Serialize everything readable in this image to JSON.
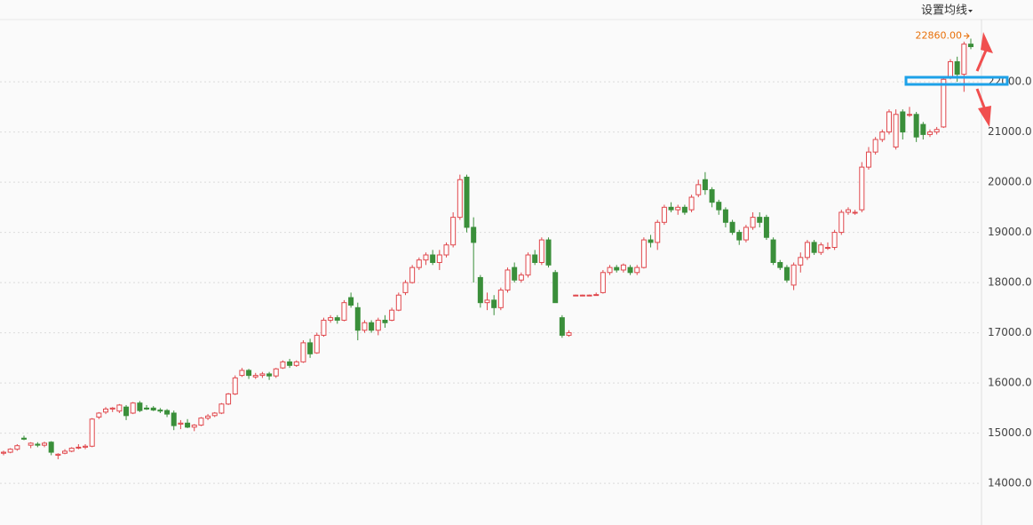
{
  "chart_data": {
    "type": "candlestick",
    "menu": "设置均线",
    "annotation": "22860.00",
    "up_color": "#e0474c",
    "down_color": "#3a8f3a",
    "annotation_color": "#e8700a",
    "grid": true,
    "ylim": [
      13170,
      23240
    ],
    "yticks": [
      {
        "value": 14000,
        "label": "14000.0"
      },
      {
        "value": 15000,
        "label": "15000.0"
      },
      {
        "value": 16000,
        "label": "16000.0"
      },
      {
        "value": 17000,
        "label": "17000.0"
      },
      {
        "value": 18000,
        "label": "18000.0"
      },
      {
        "value": 19000,
        "label": "19000.0"
      },
      {
        "value": 20000,
        "label": "20000.0"
      },
      {
        "value": 21000,
        "label": "21000.0"
      },
      {
        "value": 22000,
        "label": "22000.0"
      }
    ],
    "open": [
      14600,
      14620,
      14680,
      14900,
      14760,
      14780,
      14760,
      14820,
      14560,
      14600,
      14640,
      14720,
      14720,
      14740,
      15320,
      15420,
      15480,
      15440,
      15520,
      15400,
      15600,
      15500,
      15500,
      15460,
      15450,
      15400,
      15180,
      15200,
      15120,
      15160,
      15300,
      15350,
      15400,
      15580,
      15780,
      16150,
      16250,
      16120,
      16150,
      16180,
      16140,
      16300,
      16420,
      16350,
      16420,
      16800,
      16600,
      16950,
      17250,
      17300,
      17250,
      17700,
      17500,
      17050,
      17200,
      17050,
      17250,
      17250,
      17450,
      17800,
      18000,
      18300,
      18450,
      18550,
      18400,
      18550,
      18750,
      19300,
      20100,
      19100,
      18100,
      17600,
      17650,
      17500,
      17850,
      18300,
      18050,
      18150,
      18550,
      18400,
      18850,
      18200,
      17300,
      16950,
      17750,
      17750,
      17750,
      17750,
      17800,
      18200,
      18300,
      18250,
      18300,
      18200,
      18300,
      18850,
      18800,
      19200,
      19500,
      19450,
      19500,
      19450,
      19750,
      20050,
      19850,
      19600,
      19450,
      19200,
      19000,
      18850,
      19100,
      19300,
      19300,
      18850,
      18400,
      18300,
      17950,
      18350,
      18500,
      18800,
      18600,
      18700,
      18700,
      19000,
      19400,
      19400,
      19450,
      20300,
      20600,
      20850,
      21000,
      20700,
      21400,
      21350,
      21350,
      21150,
      20950,
      21000,
      21100,
      22100,
      22400,
      22150,
      22750
    ],
    "high": [
      14650,
      14700,
      14780,
      14950,
      14820,
      14820,
      14830,
      14840,
      14600,
      14680,
      14720,
      14780,
      14780,
      15300,
      15420,
      15520,
      15520,
      15580,
      15560,
      15620,
      15640,
      15560,
      15540,
      15500,
      15480,
      15450,
      15260,
      15280,
      15180,
      15320,
      15380,
      15420,
      15600,
      15800,
      16150,
      16300,
      16280,
      16200,
      16220,
      16220,
      16300,
      16450,
      16480,
      16450,
      16850,
      16880,
      17000,
      17300,
      17350,
      17350,
      17650,
      17800,
      17600,
      17250,
      17250,
      17300,
      17350,
      17500,
      17800,
      18050,
      18350,
      18500,
      18600,
      18650,
      18650,
      18800,
      19400,
      20150,
      20150,
      19300,
      18150,
      17800,
      17750,
      17900,
      18300,
      18400,
      18200,
      18600,
      18650,
      18900,
      18900,
      18250,
      17350,
      17050,
      17760,
      17760,
      17760,
      17800,
      18250,
      18350,
      18350,
      18380,
      18350,
      18350,
      18900,
      18950,
      19250,
      19550,
      19600,
      19550,
      19550,
      19750,
      20050,
      20200,
      19900,
      19650,
      19500,
      19250,
      19050,
      19150,
      19400,
      19400,
      19350,
      18900,
      18450,
      18350,
      18400,
      18600,
      18850,
      18850,
      18800,
      18800,
      19050,
      19450,
      19500,
      19450,
      20400,
      20700,
      20900,
      21050,
      21450,
      21450,
      21450,
      21500,
      21400,
      21200,
      21050,
      21100,
      22100,
      22450,
      22500,
      22800,
      22860
    ],
    "low": [
      14560,
      14600,
      14650,
      14860,
      14700,
      14720,
      14720,
      14560,
      14480,
      14580,
      14620,
      14680,
      14680,
      14720,
      15280,
      15380,
      15420,
      15400,
      15260,
      15380,
      15420,
      15460,
      15440,
      15400,
      15320,
      15060,
      15080,
      15100,
      15040,
      15140,
      15260,
      15320,
      15380,
      15560,
      15760,
      16120,
      16080,
      16080,
      16100,
      16060,
      16100,
      16280,
      16300,
      16320,
      16400,
      16500,
      16580,
      16920,
      17200,
      17180,
      17230,
      17500,
      16850,
      17000,
      17000,
      16950,
      17100,
      17230,
      17430,
      17750,
      17980,
      18250,
      18350,
      18350,
      18250,
      18500,
      18700,
      19250,
      19000,
      18000,
      17500,
      17450,
      17350,
      17450,
      17800,
      18000,
      18000,
      18100,
      18350,
      18350,
      18300,
      17600,
      16900,
      16920,
      17740,
      17740,
      17740,
      17740,
      17780,
      18150,
      18200,
      18200,
      18150,
      18150,
      18280,
      18700,
      18650,
      19150,
      19400,
      19350,
      19350,
      19400,
      19700,
      19750,
      19500,
      19350,
      19100,
      18950,
      18750,
      18800,
      19050,
      19100,
      18850,
      18350,
      18250,
      18000,
      17850,
      18200,
      18450,
      18550,
      18550,
      18650,
      18650,
      18950,
      19350,
      19350,
      19400,
      20250,
      20550,
      20800,
      20950,
      20650,
      20850,
      21300,
      20800,
      20850,
      20900,
      20950,
      21080,
      22050,
      22000,
      21800,
      22650
    ],
    "close": [
      14620,
      14680,
      14750,
      14880,
      14800,
      14760,
      14800,
      14620,
      14580,
      14640,
      14700,
      14720,
      14740,
      15280,
      15400,
      15480,
      15500,
      15560,
      15350,
      15600,
      15450,
      15480,
      15460,
      15440,
      15380,
      15150,
      15200,
      15120,
      15160,
      15300,
      15340,
      15400,
      15580,
      15780,
      16100,
      16250,
      16150,
      16150,
      16180,
      16140,
      16280,
      16420,
      16350,
      16420,
      16800,
      16580,
      16950,
      17250,
      17300,
      17250,
      17600,
      17550,
      17050,
      17200,
      17050,
      17250,
      17200,
      17450,
      17750,
      18000,
      18300,
      18450,
      18550,
      18400,
      18550,
      18750,
      19300,
      20050,
      19100,
      18800,
      17600,
      17650,
      17500,
      17850,
      18250,
      18050,
      18150,
      18550,
      18400,
      18850,
      18350,
      17600,
      16950,
      17000,
      17750,
      17750,
      17750,
      17760,
      18200,
      18300,
      18250,
      18350,
      18200,
      18300,
      18850,
      18800,
      19200,
      19500,
      19450,
      19500,
      19400,
      19700,
      19950,
      19850,
      19600,
      19450,
      19200,
      19000,
      18850,
      19100,
      19300,
      19200,
      18900,
      18400,
      18300,
      18050,
      18350,
      18500,
      18800,
      18600,
      18750,
      18700,
      19000,
      19400,
      19450,
      19400,
      20300,
      20600,
      20850,
      21000,
      21400,
      21350,
      21000,
      21350,
      20900,
      20950,
      21000,
      21050,
      22050,
      22400,
      22150,
      22750,
      22700
    ]
  }
}
